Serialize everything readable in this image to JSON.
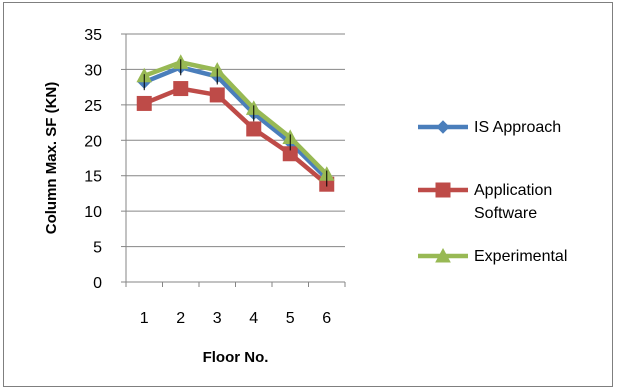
{
  "chart_data": {
    "type": "line",
    "x": [
      1,
      2,
      3,
      4,
      5,
      6
    ],
    "xlabel": "Floor No.",
    "ylabel": "Column Max. SF (KN)",
    "ylim": [
      0,
      35
    ],
    "yticks": [
      0,
      5,
      10,
      15,
      20,
      25,
      30,
      35
    ],
    "grid": "horizontal",
    "legend_position": "right",
    "series": [
      {
        "name": "IS Approach",
        "color": "#4a7ebb",
        "marker": "diamond",
        "values": [
          28.2,
          30.3,
          29.0,
          23.8,
          19.7,
          14.6
        ]
      },
      {
        "name": "Application Software",
        "color": "#be4b48",
        "marker": "square",
        "values": [
          25.2,
          27.3,
          26.4,
          21.6,
          18.1,
          13.8
        ]
      },
      {
        "name": "Experimental",
        "color": "#98b954",
        "marker": "triangle",
        "values": [
          29.1,
          31.0,
          29.9,
          24.5,
          20.4,
          15.2
        ]
      }
    ]
  }
}
